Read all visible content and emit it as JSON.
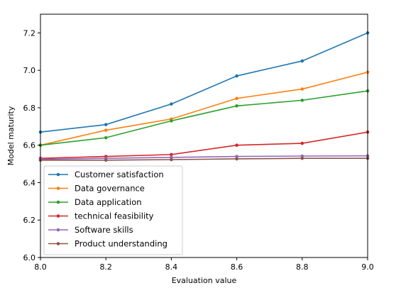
{
  "chart_data": {
    "type": "line",
    "title": "",
    "xlabel": "Evaluation value",
    "ylabel": "Model maturity",
    "xlim": [
      8.0,
      9.0
    ],
    "ylim": [
      6.0,
      7.3
    ],
    "xticks": [
      8.0,
      8.2,
      8.4,
      8.6,
      8.8,
      9.0
    ],
    "yticks": [
      6.0,
      6.2,
      6.4,
      6.6,
      6.8,
      7.0,
      7.2
    ],
    "xtick_labels": [
      "8.0",
      "8.2",
      "8.4",
      "8.6",
      "8.8",
      "9.0"
    ],
    "ytick_labels": [
      "6.0",
      "6.2",
      "6.4",
      "6.6",
      "6.8",
      "7.0",
      "7.2"
    ],
    "grid": false,
    "legend_position": "lower-left",
    "x": [
      8.0,
      8.2,
      8.4,
      8.6,
      8.8,
      9.0
    ],
    "series": [
      {
        "name": "Customer satisfaction",
        "color": "#1f77b4",
        "values": [
          6.67,
          6.71,
          6.82,
          6.97,
          7.05,
          7.2
        ]
      },
      {
        "name": "Data governance",
        "color": "#ff7f0e",
        "values": [
          6.6,
          6.68,
          6.74,
          6.85,
          6.9,
          6.99
        ]
      },
      {
        "name": "Data application",
        "color": "#2ca02c",
        "values": [
          6.6,
          6.64,
          6.73,
          6.81,
          6.84,
          6.89
        ]
      },
      {
        "name": "technical feasibility",
        "color": "#d62728",
        "values": [
          6.53,
          6.54,
          6.55,
          6.6,
          6.61,
          6.67
        ]
      },
      {
        "name": "Software skills",
        "color": "#9467bd",
        "values": [
          6.525,
          6.53,
          6.535,
          6.54,
          6.542,
          6.543
        ]
      },
      {
        "name": "Product understanding",
        "color": "#8c564b",
        "values": [
          6.52,
          6.52,
          6.523,
          6.527,
          6.53,
          6.53
        ]
      }
    ]
  }
}
